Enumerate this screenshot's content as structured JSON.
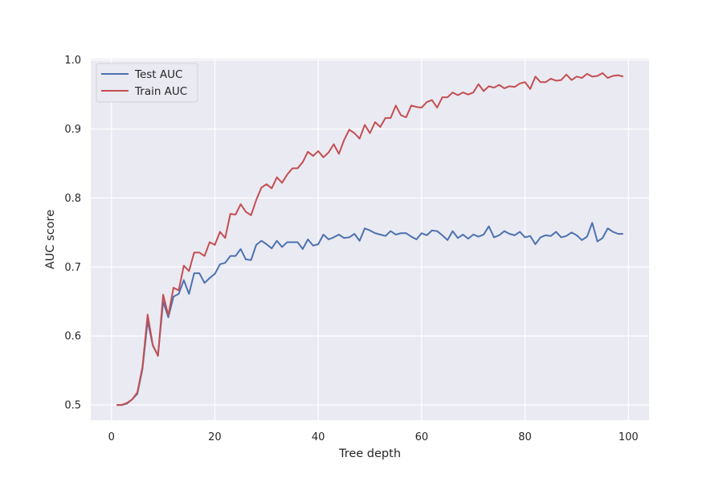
{
  "chart_data": {
    "type": "line",
    "title": "",
    "xlabel": "Tree depth",
    "ylabel": "AUC score",
    "xlim": [
      -4,
      104
    ],
    "ylim": [
      0.478,
      1.002
    ],
    "xticks": [
      0,
      20,
      40,
      60,
      80,
      100
    ],
    "yticks": [
      0.5,
      0.6,
      0.7,
      0.8,
      0.9,
      1.0
    ],
    "xtick_labels": [
      "0",
      "20",
      "40",
      "60",
      "80",
      "100"
    ],
    "ytick_labels": [
      "0.5",
      "0.6",
      "0.7",
      "0.8",
      "0.9",
      "1.0"
    ],
    "grid": true,
    "legend": "top-left",
    "x": [
      1,
      2,
      3,
      4,
      5,
      6,
      7,
      8,
      9,
      10,
      11,
      12,
      13,
      14,
      15,
      16,
      17,
      18,
      19,
      20,
      21,
      22,
      23,
      24,
      25,
      26,
      27,
      28,
      29,
      30,
      31,
      32,
      33,
      34,
      35,
      36,
      37,
      38,
      39,
      40,
      41,
      42,
      43,
      44,
      45,
      46,
      47,
      48,
      49,
      50,
      51,
      52,
      53,
      54,
      55,
      56,
      57,
      58,
      59,
      60,
      61,
      62,
      63,
      64,
      65,
      66,
      67,
      68,
      69,
      70,
      71,
      72,
      73,
      74,
      75,
      76,
      77,
      78,
      79,
      80,
      81,
      82,
      83,
      84,
      85,
      86,
      87,
      88,
      89,
      90,
      91,
      92,
      93,
      94,
      95,
      96,
      97,
      98,
      99
    ],
    "series": [
      {
        "name": "Test AUC",
        "color": "#4c72b0",
        "values": [
          0.5,
          0.5,
          0.502,
          0.508,
          0.516,
          0.552,
          0.622,
          0.586,
          0.572,
          0.65,
          0.627,
          0.657,
          0.661,
          0.681,
          0.661,
          0.691,
          0.691,
          0.677,
          0.684,
          0.69,
          0.704,
          0.706,
          0.716,
          0.716,
          0.726,
          0.711,
          0.71,
          0.732,
          0.738,
          0.733,
          0.727,
          0.738,
          0.729,
          0.736,
          0.736,
          0.736,
          0.726,
          0.74,
          0.731,
          0.733,
          0.747,
          0.74,
          0.743,
          0.747,
          0.742,
          0.743,
          0.748,
          0.738,
          0.756,
          0.753,
          0.749,
          0.747,
          0.745,
          0.752,
          0.747,
          0.749,
          0.749,
          0.744,
          0.74,
          0.749,
          0.746,
          0.753,
          0.752,
          0.746,
          0.739,
          0.752,
          0.742,
          0.747,
          0.741,
          0.747,
          0.744,
          0.747,
          0.759,
          0.743,
          0.746,
          0.752,
          0.748,
          0.746,
          0.751,
          0.743,
          0.745,
          0.733,
          0.743,
          0.746,
          0.745,
          0.751,
          0.743,
          0.745,
          0.75,
          0.746,
          0.739,
          0.744,
          0.764,
          0.737,
          0.742,
          0.756,
          0.751,
          0.748,
          0.748
        ]
      },
      {
        "name": "Train AUC",
        "color": "#c44e52",
        "values": [
          0.5,
          0.5,
          0.503,
          0.508,
          0.518,
          0.555,
          0.631,
          0.587,
          0.571,
          0.66,
          0.63,
          0.67,
          0.666,
          0.702,
          0.694,
          0.721,
          0.721,
          0.716,
          0.736,
          0.732,
          0.751,
          0.742,
          0.777,
          0.776,
          0.791,
          0.78,
          0.775,
          0.797,
          0.815,
          0.82,
          0.814,
          0.83,
          0.822,
          0.834,
          0.843,
          0.843,
          0.852,
          0.867,
          0.861,
          0.868,
          0.859,
          0.866,
          0.878,
          0.864,
          0.884,
          0.899,
          0.894,
          0.886,
          0.906,
          0.894,
          0.91,
          0.903,
          0.916,
          0.916,
          0.934,
          0.92,
          0.917,
          0.934,
          0.932,
          0.931,
          0.939,
          0.942,
          0.931,
          0.946,
          0.946,
          0.953,
          0.949,
          0.953,
          0.95,
          0.953,
          0.965,
          0.955,
          0.962,
          0.96,
          0.964,
          0.959,
          0.962,
          0.961,
          0.966,
          0.968,
          0.958,
          0.976,
          0.968,
          0.968,
          0.973,
          0.97,
          0.971,
          0.979,
          0.971,
          0.976,
          0.974,
          0.98,
          0.976,
          0.977,
          0.981,
          0.974,
          0.977,
          0.978,
          0.976
        ]
      }
    ]
  }
}
